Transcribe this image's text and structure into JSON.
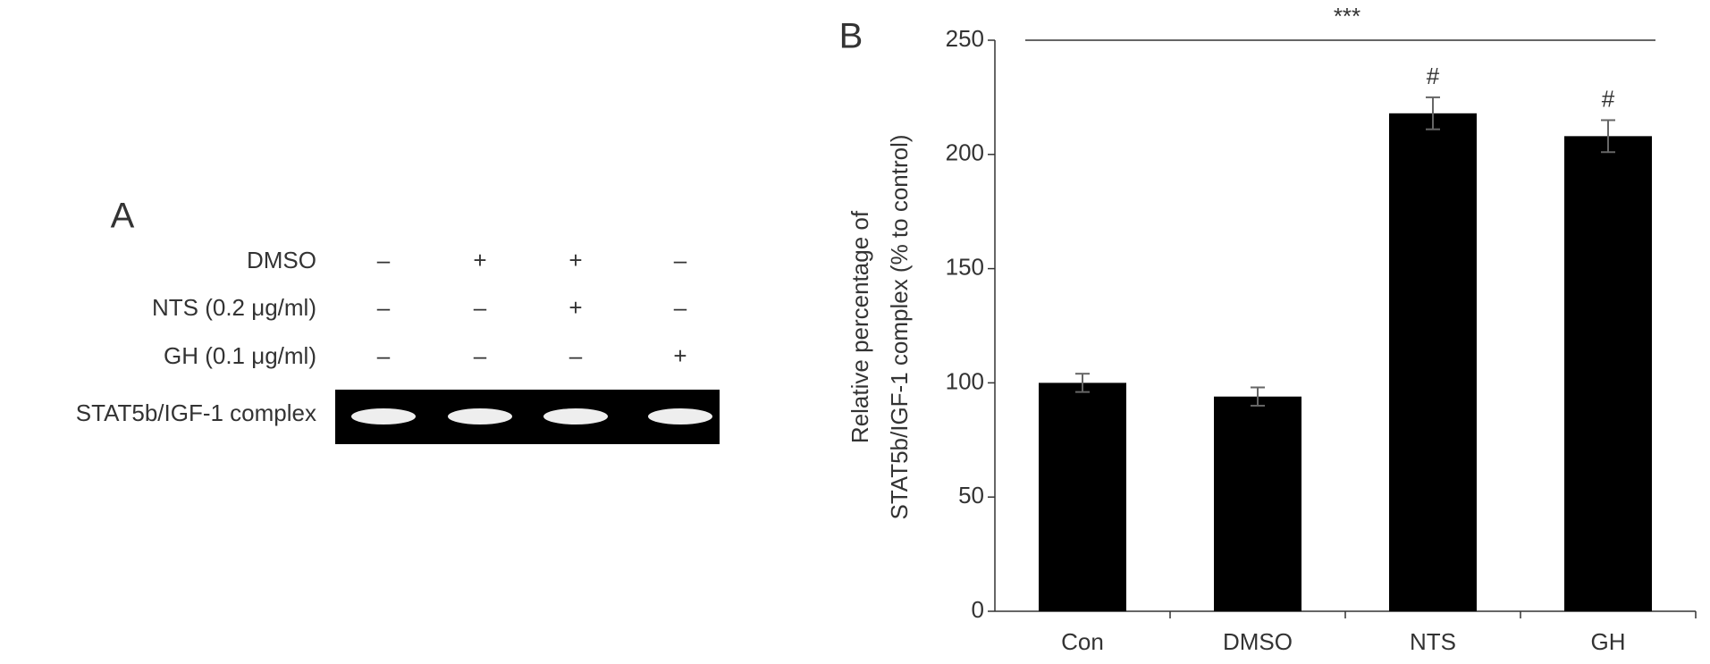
{
  "gel": {
    "panel_label": "A",
    "rows": [
      {
        "label": "DMSO",
        "signs": [
          "–",
          "+",
          "+",
          "–"
        ]
      },
      {
        "label": "NTS (0.2 μg/ml)",
        "signs": [
          "–",
          "–",
          "+",
          "–"
        ]
      },
      {
        "label": "GH (0.1 μg/ml)",
        "signs": [
          "–",
          "–",
          "–",
          "+"
        ]
      }
    ],
    "band_label": "STAT5b/IGF-1 complex"
  },
  "chart_data": {
    "type": "bar",
    "panel_label": "B",
    "y_label": [
      "Relative percentage of",
      "STAT5b/IGF-1 complex (% to control)"
    ],
    "categories": [
      "Con",
      "DMSO",
      "NTS",
      "GH"
    ],
    "values": [
      100,
      94,
      218,
      208
    ],
    "errors": [
      4,
      4,
      7,
      7
    ],
    "value_annotations": [
      null,
      null,
      "#",
      "#"
    ],
    "significance_label": "***",
    "color": "#000000",
    "ylim": [
      0,
      250
    ],
    "yticks": [
      0,
      50,
      100,
      150,
      200,
      250
    ]
  }
}
